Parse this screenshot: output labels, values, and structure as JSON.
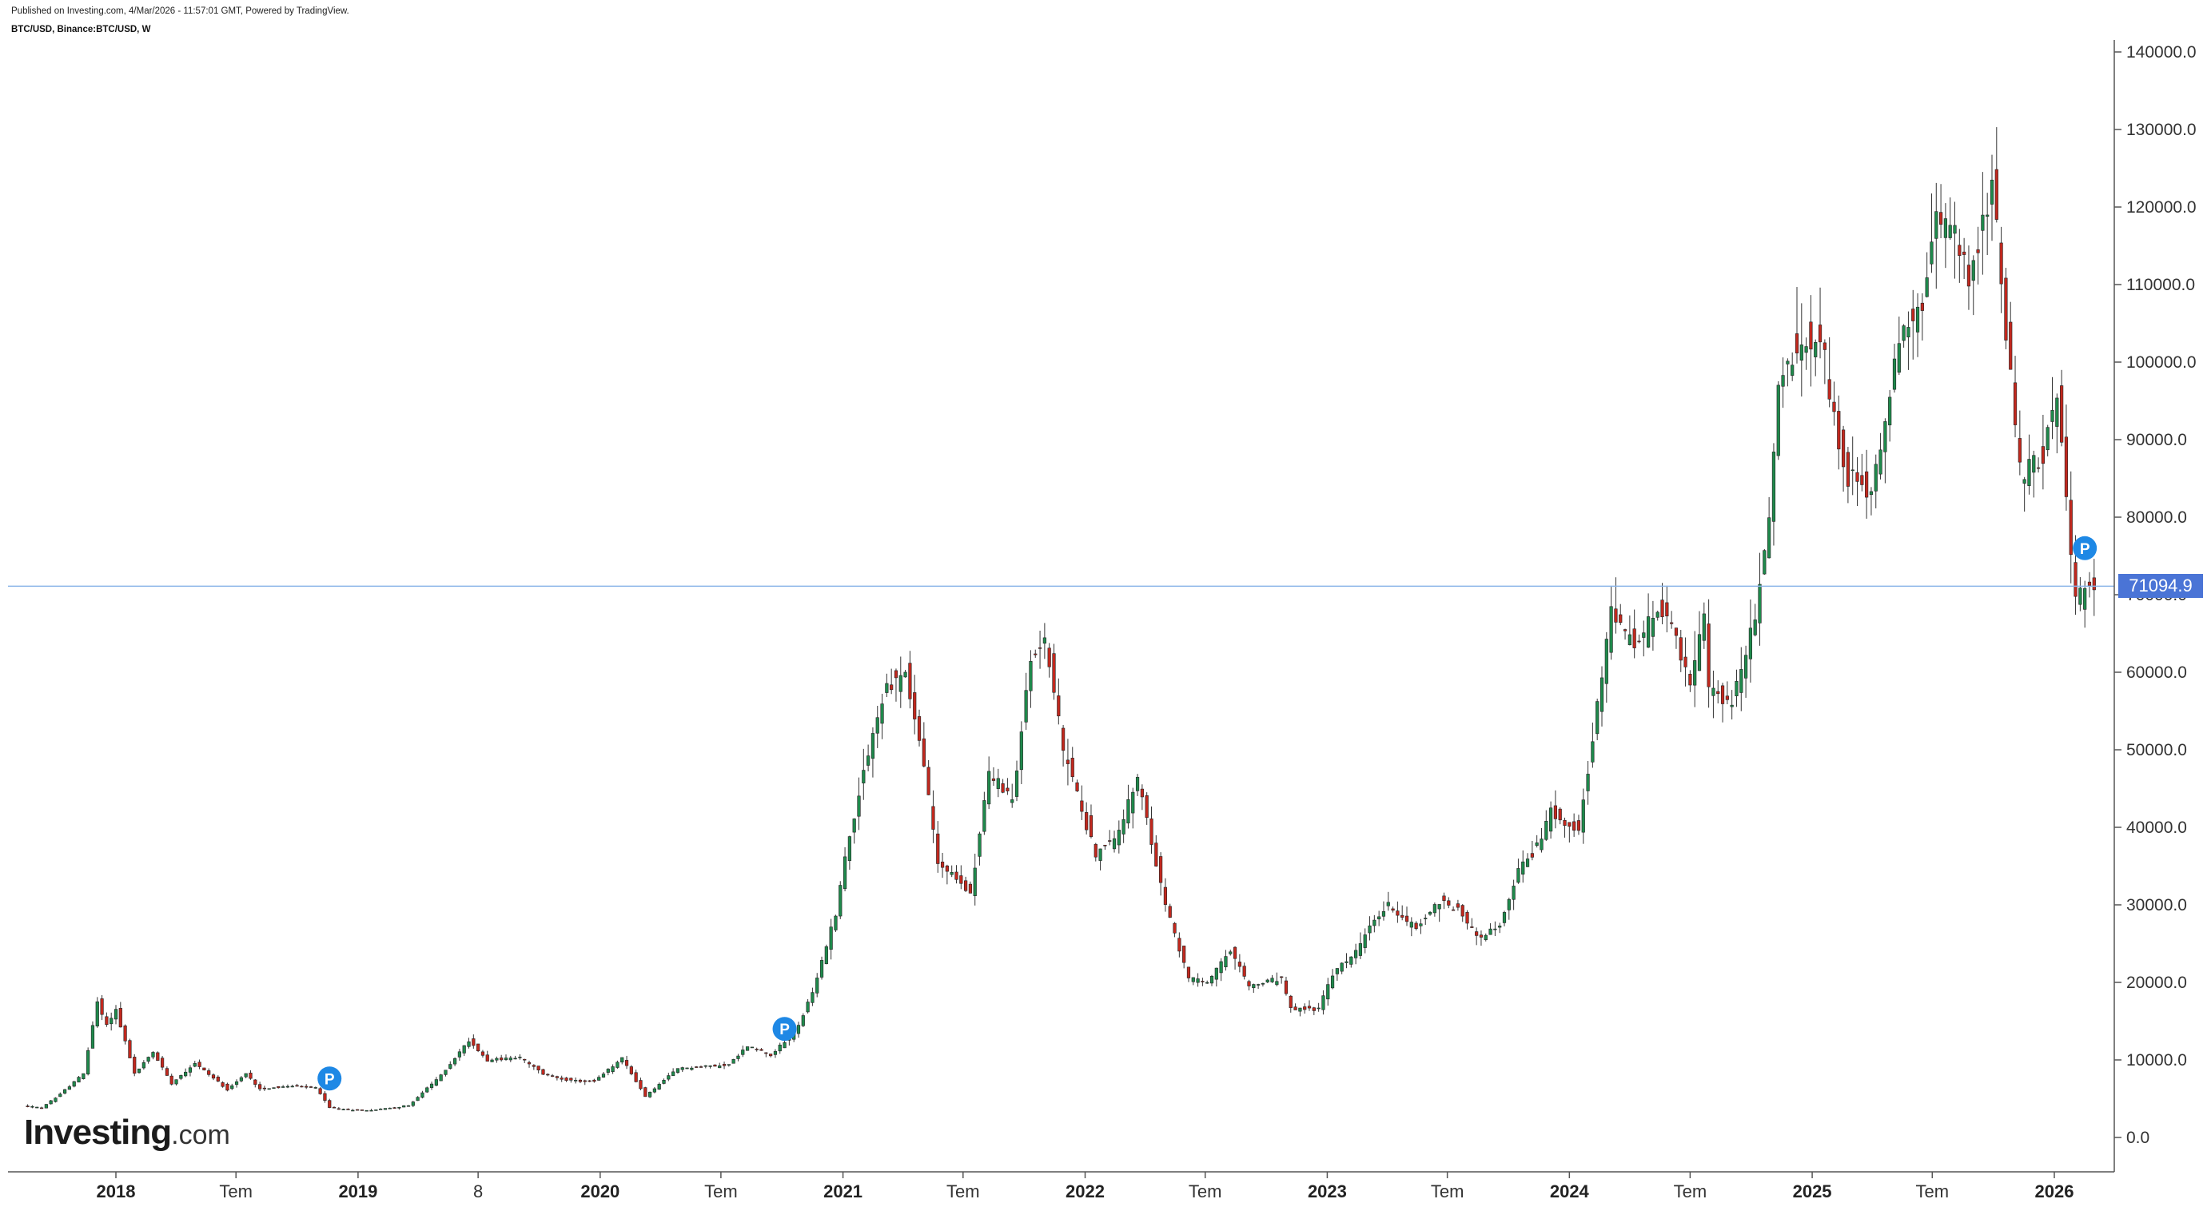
{
  "header": {
    "published": "Published on Investing.com, 4/Mar/2026 - 11:57:01 GMT, Powered by TradingView.",
    "symbol": "BTC/USD, Binance:BTC/USD, W"
  },
  "logo": {
    "main": "Investing",
    "suffix": ".com"
  },
  "last_price": {
    "label": "71094.9",
    "value": 71094.9
  },
  "colors": {
    "up": "#1f8a4c",
    "down": "#c2281e",
    "wick": "#333333",
    "price_line": "#8ab4e8",
    "badge": "#1e88e5",
    "axis": "#555555"
  },
  "p_marker_label": "P",
  "chart_data": {
    "type": "candlestick",
    "timeframe": "W",
    "ylim": [
      0,
      140000
    ],
    "yticks": [
      "140000.0",
      "130000.0",
      "120000.0",
      "110000.0",
      "100000.0",
      "90000.0",
      "80000.0",
      "70000.0",
      "60000.0",
      "50000.0",
      "40000.0",
      "30000.0",
      "20000.0",
      "10000.0",
      "0.0"
    ],
    "ytick_values": [
      140000,
      130000,
      120000,
      110000,
      100000,
      90000,
      80000,
      70000,
      60000,
      50000,
      40000,
      30000,
      20000,
      10000,
      0
    ],
    "xlim": [
      "2017-08-14",
      "2026-03-09"
    ],
    "xticks": [
      {
        "label": "2018",
        "date": "2018-01-01",
        "year": true
      },
      {
        "label": "Tem",
        "date": "2018-07-01",
        "year": false
      },
      {
        "label": "2019",
        "date": "2019-01-01",
        "year": true
      },
      {
        "label": "8",
        "date": "2019-07-01",
        "year": false
      },
      {
        "label": "2020",
        "date": "2020-01-01",
        "year": true
      },
      {
        "label": "Tem",
        "date": "2020-07-01",
        "year": false
      },
      {
        "label": "2021",
        "date": "2021-01-01",
        "year": true
      },
      {
        "label": "Tem",
        "date": "2021-07-01",
        "year": false
      },
      {
        "label": "2022",
        "date": "2022-01-01",
        "year": true
      },
      {
        "label": "Tem",
        "date": "2022-07-01",
        "year": false
      },
      {
        "label": "2023",
        "date": "2023-01-01",
        "year": true
      },
      {
        "label": "Tem",
        "date": "2023-07-01",
        "year": false
      },
      {
        "label": "2024",
        "date": "2024-01-01",
        "year": true
      },
      {
        "label": "Tem",
        "date": "2024-07-01",
        "year": false
      },
      {
        "label": "2025",
        "date": "2025-01-01",
        "year": true
      },
      {
        "label": "Tem",
        "date": "2025-07-01",
        "year": false
      },
      {
        "label": "2026",
        "date": "2026-01-01",
        "year": true
      }
    ],
    "price_path": [
      [
        "2017-08-21",
        4100
      ],
      [
        "2017-09-18",
        3800
      ],
      [
        "2017-10-16",
        5600
      ],
      [
        "2017-11-20",
        8200
      ],
      [
        "2017-12-11",
        17500
      ],
      [
        "2017-12-25",
        14500
      ],
      [
        "2018-01-08",
        16500
      ],
      [
        "2018-02-05",
        8200
      ],
      [
        "2018-03-05",
        11000
      ],
      [
        "2018-04-02",
        7000
      ],
      [
        "2018-05-07",
        9600
      ],
      [
        "2018-06-25",
        6200
      ],
      [
        "2018-07-23",
        8200
      ],
      [
        "2018-08-13",
        6300
      ],
      [
        "2018-10-01",
        6600
      ],
      [
        "2018-11-05",
        6400
      ],
      [
        "2018-11-26",
        3900
      ],
      [
        "2018-12-17",
        3600
      ],
      [
        "2019-01-28",
        3500
      ],
      [
        "2019-03-25",
        4100
      ],
      [
        "2019-05-13",
        8000
      ],
      [
        "2019-06-24",
        12500
      ],
      [
        "2019-07-22",
        10000
      ],
      [
        "2019-09-09",
        10300
      ],
      [
        "2019-10-14",
        8200
      ],
      [
        "2019-11-25",
        7300
      ],
      [
        "2019-12-30",
        7200
      ],
      [
        "2020-02-10",
        10200
      ],
      [
        "2020-03-16",
        5300
      ],
      [
        "2020-05-04",
        8900
      ],
      [
        "2020-07-20",
        9400
      ],
      [
        "2020-08-17",
        11800
      ],
      [
        "2020-09-21",
        10700
      ],
      [
        "2020-10-26",
        13300
      ],
      [
        "2020-11-23",
        18500
      ],
      [
        "2020-12-28",
        29000
      ],
      [
        "2021-01-11",
        36000
      ],
      [
        "2021-02-15",
        50000
      ],
      [
        "2021-03-15",
        58000
      ],
      [
        "2021-04-12",
        60000
      ],
      [
        "2021-05-10",
        48000
      ],
      [
        "2021-05-31",
        35500
      ],
      [
        "2021-07-19",
        31500
      ],
      [
        "2021-08-16",
        47000
      ],
      [
        "2021-09-20",
        43500
      ],
      [
        "2021-10-18",
        61500
      ],
      [
        "2021-11-08",
        64500
      ],
      [
        "2021-12-06",
        50000
      ],
      [
        "2022-01-24",
        36500
      ],
      [
        "2022-02-21",
        38500
      ],
      [
        "2022-03-28",
        46000
      ],
      [
        "2022-05-09",
        30000
      ],
      [
        "2022-06-13",
        20500
      ],
      [
        "2022-07-11",
        20000
      ],
      [
        "2022-08-15",
        24000
      ],
      [
        "2022-09-12",
        19500
      ],
      [
        "2022-10-31",
        20500
      ],
      [
        "2022-11-14",
        16500
      ],
      [
        "2022-12-26",
        16600
      ],
      [
        "2023-01-16",
        21000
      ],
      [
        "2023-02-20",
        24000
      ],
      [
        "2023-03-20",
        28000
      ],
      [
        "2023-04-10",
        30000
      ],
      [
        "2023-05-22",
        27000
      ],
      [
        "2023-06-26",
        30500
      ],
      [
        "2023-07-24",
        29500
      ],
      [
        "2023-08-21",
        26000
      ],
      [
        "2023-09-25",
        27000
      ],
      [
        "2023-10-23",
        34500
      ],
      [
        "2023-11-20",
        37500
      ],
      [
        "2023-12-11",
        42000
      ],
      [
        "2024-01-22",
        40000
      ],
      [
        "2024-02-12",
        51000
      ],
      [
        "2024-03-11",
        68000
      ],
      [
        "2024-04-15",
        63000
      ],
      [
        "2024-05-20",
        68000
      ],
      [
        "2024-06-10",
        67000
      ],
      [
        "2024-07-08",
        58000
      ],
      [
        "2024-07-29",
        67000
      ],
      [
        "2024-08-05",
        58000
      ],
      [
        "2024-09-09",
        56000
      ],
      [
        "2024-10-14",
        67000
      ],
      [
        "2024-11-04",
        80000
      ],
      [
        "2024-11-18",
        97000
      ],
      [
        "2024-12-16",
        102000
      ],
      [
        "2025-01-20",
        104000
      ],
      [
        "2025-02-24",
        86000
      ],
      [
        "2025-04-07",
        83000
      ],
      [
        "2025-05-19",
        103000
      ],
      [
        "2025-06-23",
        107000
      ],
      [
        "2025-07-14",
        118000
      ],
      [
        "2025-08-11",
        118000
      ],
      [
        "2025-09-01",
        110000
      ],
      [
        "2025-10-06",
        123000
      ],
      [
        "2025-10-20",
        110000
      ],
      [
        "2025-11-17",
        86000
      ],
      [
        "2025-12-22",
        88000
      ],
      [
        "2026-01-12",
        95000
      ],
      [
        "2026-01-26",
        84000
      ],
      [
        "2026-02-09",
        69000
      ],
      [
        "2026-03-02",
        71100
      ]
    ],
    "last_price": 71094.9,
    "p_markers": [
      {
        "date": "2018-11-19",
        "value": 7600
      },
      {
        "date": "2020-10-05",
        "value": 14000
      },
      {
        "date": "2026-02-16",
        "value": 76000
      }
    ]
  }
}
